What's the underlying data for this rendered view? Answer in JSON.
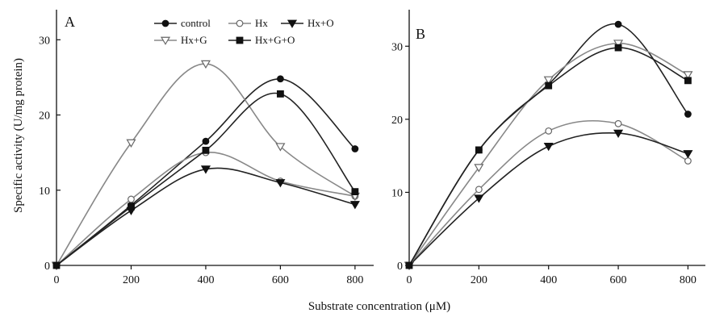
{
  "figure": {
    "xlabel": "Substrate concentration (μM)",
    "ylabel": "Specific activity (U/mg protein)"
  },
  "legend": [
    {
      "name": "control",
      "marker": "filled-circle",
      "color": "#222222"
    },
    {
      "name": "Hx",
      "marker": "open-circle",
      "color": "#888888"
    },
    {
      "name": "Hx+O",
      "marker": "filled-triangle-down",
      "color": "#222222"
    },
    {
      "name": "Hx+G",
      "marker": "open-triangle-down",
      "color": "#888888"
    },
    {
      "name": "Hx+G+O",
      "marker": "filled-square",
      "color": "#222222"
    }
  ],
  "chart_data": [
    {
      "type": "line",
      "panel_label": "A",
      "x": [
        0,
        200,
        400,
        600,
        800
      ],
      "xticks": [
        0,
        200,
        400,
        600,
        800
      ],
      "xlim": [
        0,
        850
      ],
      "yticks": [
        0,
        10,
        20,
        30
      ],
      "ylim": [
        0,
        34
      ],
      "series": [
        {
          "name": "control",
          "values": [
            0,
            8.0,
            16.5,
            24.8,
            15.5
          ]
        },
        {
          "name": "Hx",
          "values": [
            0,
            8.8,
            15.0,
            11.2,
            9.2
          ]
        },
        {
          "name": "Hx+O",
          "values": [
            0,
            7.3,
            12.8,
            11.0,
            8.1
          ]
        },
        {
          "name": "Hx+G",
          "values": [
            0,
            16.3,
            26.8,
            15.8,
            9.2
          ]
        },
        {
          "name": "Hx+G+O",
          "values": [
            0,
            7.8,
            15.3,
            22.8,
            9.8
          ]
        }
      ]
    },
    {
      "type": "line",
      "panel_label": "B",
      "x": [
        0,
        200,
        400,
        600,
        800
      ],
      "xticks": [
        0,
        200,
        400,
        600,
        800
      ],
      "xlim": [
        0,
        850
      ],
      "yticks": [
        0,
        10,
        20,
        30
      ],
      "ylim": [
        0,
        35
      ],
      "series": [
        {
          "name": "control",
          "values": [
            0,
            15.8,
            24.8,
            33.0,
            20.7
          ]
        },
        {
          "name": "Hx",
          "values": [
            0,
            10.4,
            18.4,
            19.4,
            14.3
          ]
        },
        {
          "name": "Hx+O",
          "values": [
            0,
            9.2,
            16.3,
            18.1,
            15.3
          ]
        },
        {
          "name": "Hx+G",
          "values": [
            0,
            13.4,
            25.4,
            30.4,
            26.1
          ]
        },
        {
          "name": "Hx+G+O",
          "values": [
            0,
            15.8,
            24.6,
            29.8,
            25.3
          ]
        }
      ]
    }
  ]
}
